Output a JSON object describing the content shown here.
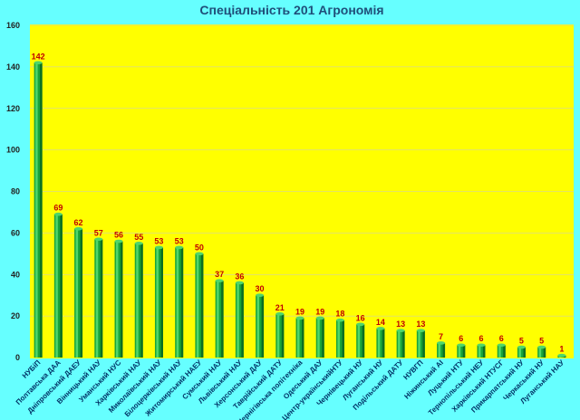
{
  "chart_data": {
    "type": "bar",
    "title": "Спеціальність 201 Агрономія",
    "xlabel": "",
    "ylabel": "",
    "ylim": [
      0,
      160
    ],
    "yticks": [
      0,
      20,
      40,
      60,
      80,
      100,
      120,
      140,
      160
    ],
    "grid": false,
    "legend": "none",
    "colors": {
      "background": "#66ffff",
      "plot_area": "#ffff00",
      "bar": "#1aa33a",
      "bar_dark": "#0b6e22",
      "bar_light": "#4fd66a",
      "value_label": "#c00000",
      "gridline": "#c8c8c8"
    },
    "categories": [
      "НУБіП",
      "Полтавська ДАА",
      "Дніпровський ДАЕУ",
      "Вінницький НАУ",
      "Уманський НУС",
      "Харківський НАУ",
      "Миколаївський НАУ",
      "Білоцерківський НАУ",
      "Житомирський НАЕУ",
      "Сумський НАУ",
      "Львівський НАУ",
      "Херсонський ДАУ",
      "Таврійський ДАТУ",
      "Чернігівська політехніка",
      "Одеський ДАУ",
      "Центр-українськийНТУ",
      "Чернівецький НУ",
      "Луганський НУ",
      "Подільський ДАТУ",
      "НУВГП",
      "Ніжинський АІ",
      "Луцький НТУ",
      "Тернопільський НЕУ",
      "Харківський НТУСГ",
      "Прикарпатський НУ",
      "Черкаський НУ",
      "Луганський НАУ"
    ],
    "values": [
      142,
      69,
      62,
      57,
      56,
      55,
      53,
      53,
      50,
      37,
      36,
      30,
      21,
      19,
      19,
      18,
      16,
      14,
      13,
      13,
      7,
      6,
      6,
      6,
      5,
      5,
      1
    ]
  }
}
